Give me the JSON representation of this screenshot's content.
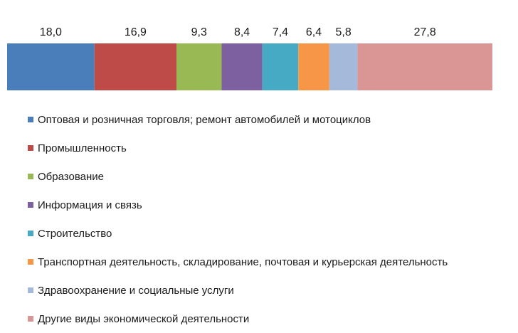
{
  "chart_data": {
    "type": "bar",
    "orientation": "horizontal-stacked-100",
    "legend_position": "bottom",
    "grid": false,
    "series": [
      {
        "name": "Оптовая и розничная торговля; ремонт автомобилей и мотоциклов",
        "value": 18.0,
        "label": "18,0",
        "color": "#4A7EBB"
      },
      {
        "name": "Промышленность",
        "value": 16.9,
        "label": "16,9",
        "color": "#BE4B48"
      },
      {
        "name": "Образование",
        "value": 9.3,
        "label": "9,3",
        "color": "#98B954"
      },
      {
        "name": "Информация и связь",
        "value": 8.4,
        "label": "8,4",
        "color": "#7D60A0"
      },
      {
        "name": "Строительство",
        "value": 7.4,
        "label": "7,4",
        "color": "#46AAC5"
      },
      {
        "name": "Транспортная деятельность, складирование, почтовая и курьерская деятельность",
        "value": 6.4,
        "label": "6,4",
        "color": "#F79646"
      },
      {
        "name": "Здравоохранение и социальные услуги",
        "value": 5.8,
        "label": "5,8",
        "color": "#A5B9DB"
      },
      {
        "name": "Другие виды экономической деятельности",
        "value": 27.8,
        "label": "27,8",
        "color": "#D99694"
      }
    ]
  }
}
